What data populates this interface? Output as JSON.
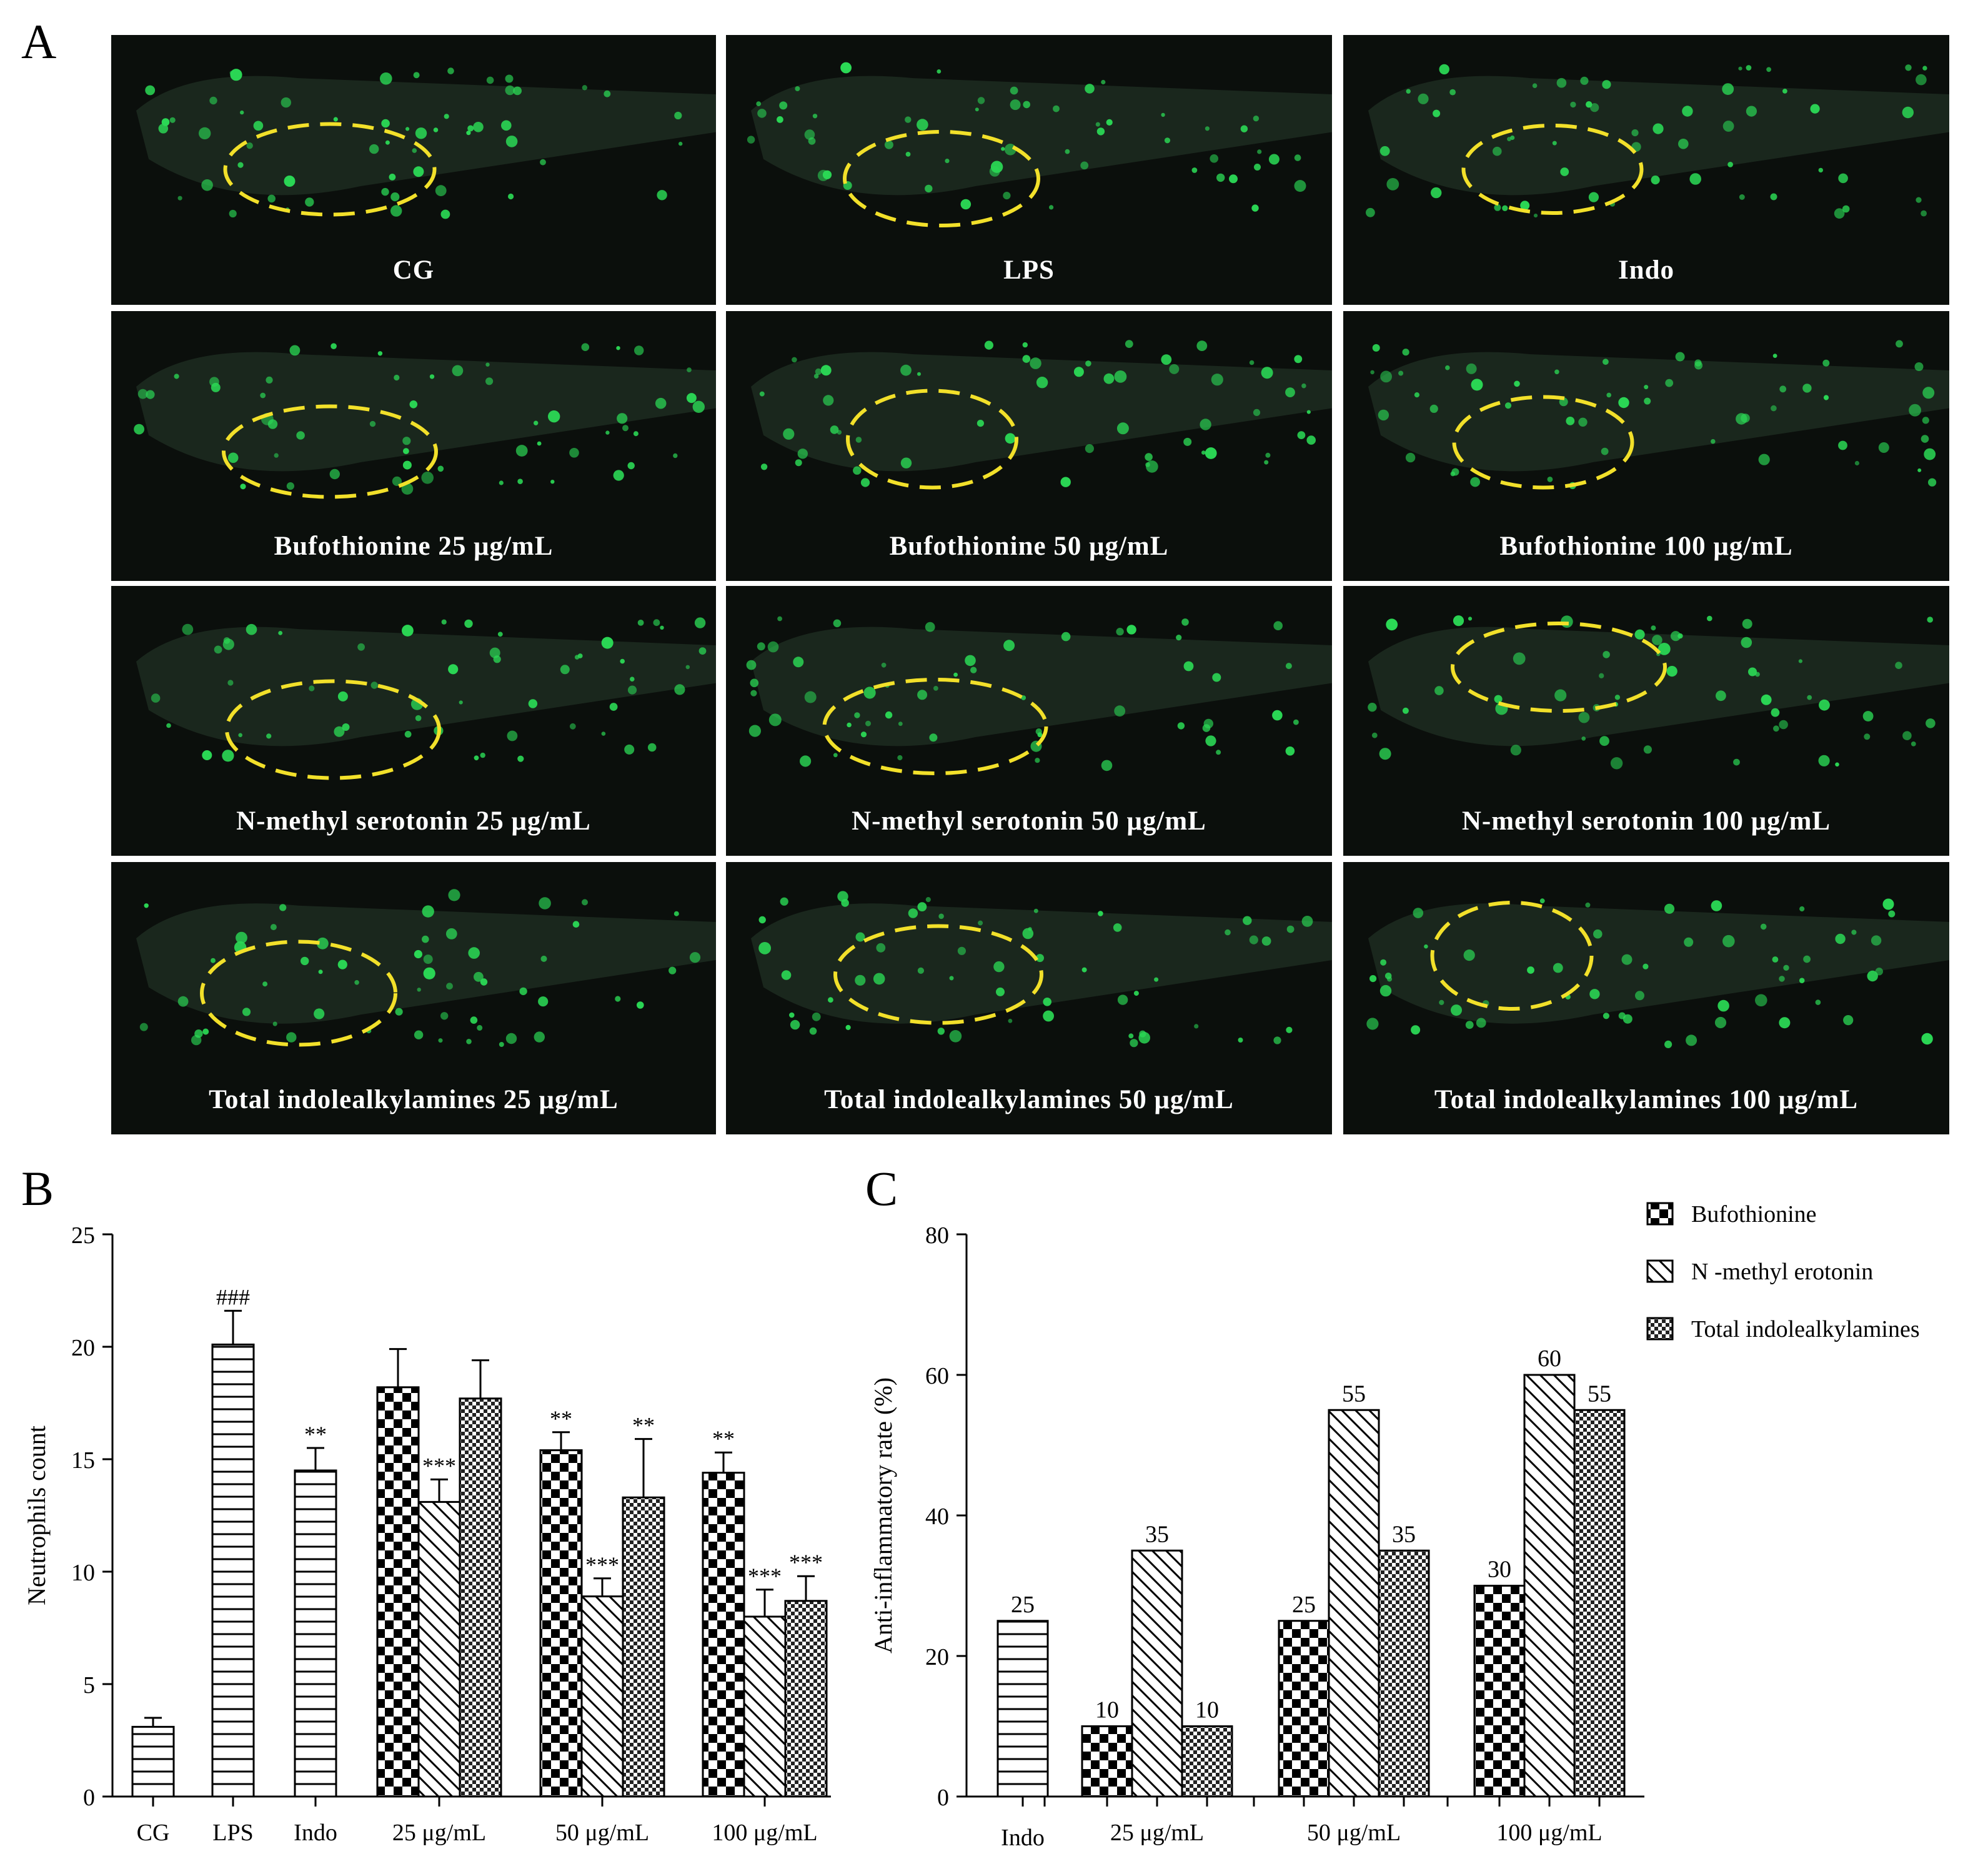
{
  "panel_letters": {
    "a": "A",
    "b": "B",
    "c": "C"
  },
  "panel_a": {
    "cells": [
      {
        "label": "CG"
      },
      {
        "label": "LPS"
      },
      {
        "label": "Indo"
      },
      {
        "label": "Bufothionine 25 μg/mL"
      },
      {
        "label": "Bufothionine 50 μg/mL"
      },
      {
        "label": "Bufothionine 100 μg/mL"
      },
      {
        "label": "N-methyl serotonin 25 μg/mL"
      },
      {
        "label": "N-methyl serotonin 50 μg/mL"
      },
      {
        "label": "N-methyl serotonin 100 μg/mL"
      },
      {
        "label": "Total  indolealkylamines  25 μg/mL"
      },
      {
        "label": "Total  indolealkylamines   50 μg/mL"
      },
      {
        "label": "Total  indolealkylamines  100 μg/mL"
      }
    ],
    "colors": {
      "background": "#0b0f0c",
      "fluorescence": "#2bd855",
      "outline": "#f2e02a"
    }
  },
  "chart_data": [
    {
      "type": "bar",
      "panel": "B",
      "ylabel": "Neutrophils count",
      "ylim": [
        0,
        25
      ],
      "yticks": [
        "0",
        "5",
        "10",
        "15",
        "20",
        "25"
      ],
      "groups": [
        {
          "label": "CG",
          "bars": [
            {
              "pattern": "hlines",
              "value": 3.1,
              "error": 0.4,
              "mark": ""
            }
          ]
        },
        {
          "label": "LPS",
          "bars": [
            {
              "pattern": "hlines",
              "value": 20.1,
              "error": 1.5,
              "mark": "###"
            }
          ]
        },
        {
          "label": "Indo",
          "bars": [
            {
              "pattern": "hlines",
              "value": 14.5,
              "error": 1.0,
              "mark": "**"
            }
          ]
        },
        {
          "label": "25 μg/mL",
          "bars": [
            {
              "pattern": "checker",
              "value": 18.2,
              "error": 1.7,
              "mark": ""
            },
            {
              "pattern": "diag",
              "value": 13.1,
              "error": 1.0,
              "mark": "***"
            },
            {
              "pattern": "fine",
              "value": 17.7,
              "error": 1.7,
              "mark": ""
            }
          ]
        },
        {
          "label": "50 μg/mL",
          "bars": [
            {
              "pattern": "checker",
              "value": 15.4,
              "error": 0.8,
              "mark": "**"
            },
            {
              "pattern": "diag",
              "value": 8.9,
              "error": 0.8,
              "mark": "***"
            },
            {
              "pattern": "fine",
              "value": 13.3,
              "error": 2.6,
              "mark": "**"
            }
          ]
        },
        {
          "label": "100 μg/mL",
          "bars": [
            {
              "pattern": "checker",
              "value": 14.4,
              "error": 0.9,
              "mark": "**"
            },
            {
              "pattern": "diag",
              "value": 8.0,
              "error": 1.2,
              "mark": "***"
            },
            {
              "pattern": "fine",
              "value": 8.7,
              "error": 1.1,
              "mark": "***"
            }
          ]
        }
      ]
    },
    {
      "type": "bar",
      "panel": "C",
      "ylabel": "Anti-inflammatory rate (%)",
      "ylim": [
        0,
        80
      ],
      "yticks": [
        "0",
        "20",
        "40",
        "60",
        "80"
      ],
      "legend": [
        {
          "name": "Bufothionine",
          "pattern": "checker"
        },
        {
          "name": "N -methyl erotonin",
          "pattern": "diag"
        },
        {
          "name": "Total indolealkylamines",
          "pattern": "fine"
        }
      ],
      "groups": [
        {
          "label": "Indo",
          "bars": [
            {
              "pattern": "hlines",
              "value": 25,
              "label": "25"
            }
          ]
        },
        {
          "label": "25 μg/mL",
          "bars": [
            {
              "pattern": "checker",
              "value": 10,
              "label": "10"
            },
            {
              "pattern": "diag",
              "value": 35,
              "label": "35"
            },
            {
              "pattern": "fine",
              "value": 10,
              "label": "10"
            }
          ]
        },
        {
          "label": "50 μg/mL",
          "bars": [
            {
              "pattern": "checker",
              "value": 25,
              "label": "25"
            },
            {
              "pattern": "diag",
              "value": 55,
              "label": "55"
            },
            {
              "pattern": "fine",
              "value": 35,
              "label": "35"
            }
          ]
        },
        {
          "label": "100 μg/mL",
          "bars": [
            {
              "pattern": "checker",
              "value": 30,
              "label": "30"
            },
            {
              "pattern": "diag",
              "value": 60,
              "label": "60"
            },
            {
              "pattern": "fine",
              "value": 55,
              "label": "55"
            }
          ]
        }
      ]
    }
  ]
}
